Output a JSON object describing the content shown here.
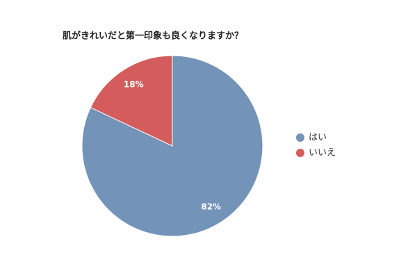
{
  "chart_data": {
    "type": "pie",
    "title": "肌がきれいだと第一印象も良くなりますか？",
    "categories": [
      "はい",
      "いいえ"
    ],
    "values": [
      82,
      18
    ],
    "value_labels": [
      "82%",
      "18%"
    ],
    "colors": [
      "#7393b8",
      "#d45c5c"
    ],
    "legend": "right"
  }
}
